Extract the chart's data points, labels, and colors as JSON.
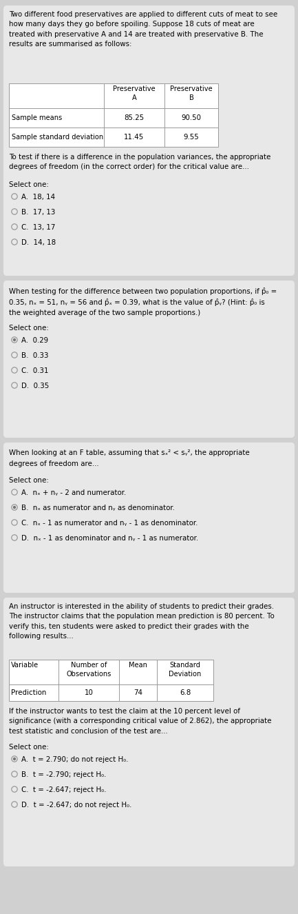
{
  "bg_color": "#d0d0d0",
  "box_bg": "#e8e8e8",
  "text_color": "#000000",
  "q1": {
    "intro": "Two different food preservatives are applied to different cuts of meat to see\nhow many days they go before spoiling. Suppose 18 cuts of meat are\ntreated with preservative A and 14 are treated with preservative B. The\nresults are summarised as follows:",
    "table_col1": [
      "Sample means",
      "Sample standard deviation"
    ],
    "table_colA": [
      "85.25",
      "11.45"
    ],
    "table_colB": [
      "90.50",
      "9.55"
    ],
    "question": "To test if there is a difference in the population variances, the appropriate\ndegrees of freedom (in the correct order) for the critical value are...",
    "select": "Select one:",
    "options": [
      "A.  18, 14",
      "B.  17, 13",
      "C.  13, 17",
      "D.  14, 18"
    ],
    "filled": [
      1,
      1,
      1,
      1
    ]
  },
  "q2": {
    "question_parts": [
      "When testing for the difference between two population proportions, if p̂₀ =",
      "0.35, nₓ = 51, nᵧ = 56 and p̂ₓ = 0.39, what is the value of p̂ᵧ? (Hint: p̂₀ is",
      "the weighted average of the two sample proportions.)"
    ],
    "select": "Select one:",
    "options": [
      "A.  0.29",
      "B.  0.33",
      "C.  0.31",
      "D.  0.35"
    ],
    "filled": [
      2,
      1,
      1,
      1
    ]
  },
  "q3": {
    "question_parts": [
      "When looking at an F table, assuming that sₓ² < sᵧ², the appropriate",
      "degrees of freedom are..."
    ],
    "select": "Select one:",
    "options": [
      "A.  nₓ + nᵧ - 2 and numerator.",
      "B.  nₓ as numerator and nᵧ as denominator.",
      "C.  nₓ - 1 as numerator and nᵧ - 1 as denominator.",
      "D.  nₓ - 1 as denominator and nᵧ - 1 as numerator."
    ],
    "filled": [
      1,
      2,
      1,
      1
    ]
  },
  "q4": {
    "intro": "An instructor is interested in the ability of students to predict their grades.\nThe instructor claims that the population mean prediction is 80 percent. To\nverify this, ten students were asked to predict their grades with the\nfollowing results...",
    "table_headers": [
      "Variable",
      "Number of\nObservations",
      "Mean",
      "Standard\nDeviation"
    ],
    "table_row": [
      "Prediction",
      "10",
      "74",
      "6.8"
    ],
    "question": "If the instructor wants to test the claim at the 10 percent level of\nsignificance (with a corresponding critical value of 2.862), the appropriate\ntest statistic and conclusion of the test are...",
    "select": "Select one:",
    "options": [
      "A.  t = 2.790; do not reject H₀.",
      "B.  t = -2.790; reject H₀.",
      "C.  t = -2.647; reject H₀.",
      "D.  t = -2.647; do not reject H₀."
    ],
    "filled": [
      2,
      1,
      1,
      1
    ]
  }
}
